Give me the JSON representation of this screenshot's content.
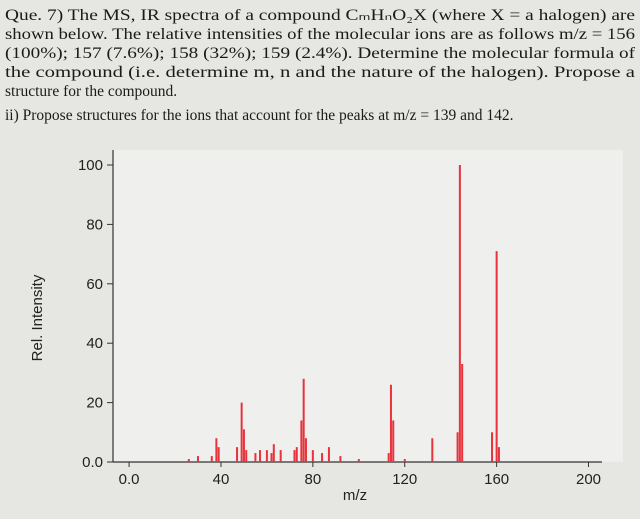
{
  "question": {
    "lines": [
      "Que. 7) The MS, IR spectra of a compound CₘHₙO₂X (where X = a halogen) are",
      "shown below. The relative intensities of the molecular ions are as follows m/z = 156",
      "(100%); 157 (7.6%); 158 (32%); 159 (2.4%). Determine the molecular formula of",
      "the compound (i.e. determine m, n and the nature of the halogen). Propose a",
      "structure for the compound.",
      "ii) Propose structures for the ions that account for the peaks at m/z = 139 and 142."
    ]
  },
  "chart_data": {
    "type": "bar",
    "x_label": "m/z",
    "y_label": "Rel. Intensity",
    "x": [
      26,
      30,
      36,
      38,
      39,
      47,
      49,
      50,
      51,
      55,
      57,
      60,
      62,
      63,
      66,
      72,
      73,
      75,
      76,
      77,
      80,
      84,
      87,
      92,
      100,
      113,
      114,
      115,
      120,
      132,
      143,
      144,
      145,
      158,
      160,
      161
    ],
    "values": [
      1,
      2,
      2,
      8,
      5,
      5,
      20,
      11,
      4,
      3,
      4,
      4,
      3,
      6,
      4,
      4,
      5,
      14,
      28,
      8,
      4,
      3,
      5,
      2,
      1,
      3,
      26,
      14,
      1,
      8,
      10,
      100,
      33,
      10,
      71,
      5
    ],
    "color": "#e8323c",
    "xlim": [
      -7,
      205
    ],
    "xticks": [
      {
        "value": 0,
        "label": "0.0"
      },
      40,
      80,
      120,
      160,
      200
    ],
    "ylim": [
      0,
      100
    ],
    "yticks": [
      {
        "value": 0,
        "label": "0.0"
      },
      20,
      40,
      60,
      80,
      100
    ],
    "grid": false
  }
}
